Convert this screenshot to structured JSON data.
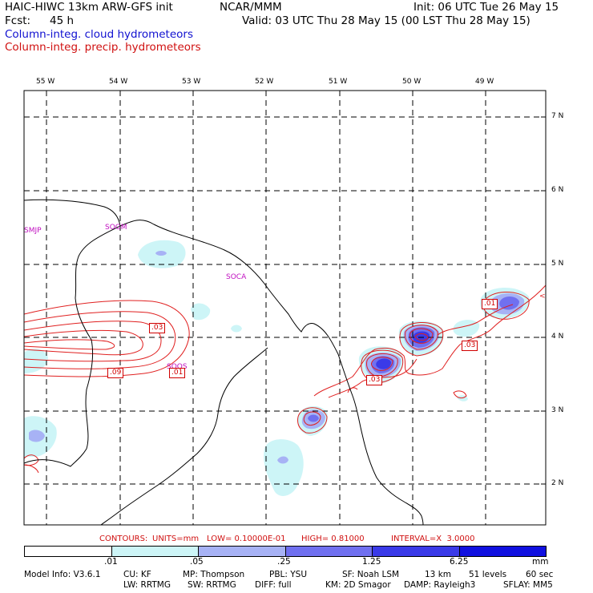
{
  "header": {
    "line1_left": "HAIC-HIWC 13km ARW-GFS init",
    "line1_mid": "NCAR/MMM",
    "line1_right": "Init: 06 UTC Tue 26 May 15",
    "line2_left_label": "Fcst:",
    "line2_left_value": "45 h",
    "line2_right": "Valid: 03 UTC Thu 28 May 15 (00 LST Thu 28 May 15)"
  },
  "legend": {
    "cloud": "Column-integ. cloud hydrometeors",
    "precip": "Column-integ. precip. hydrometeors",
    "cloud_color": "#1010d0",
    "precip_color": "#d01010"
  },
  "map": {
    "lon_labels": [
      "55 W",
      "54 W",
      "53 W",
      "52 W",
      "51 W",
      "50 W",
      "49 W"
    ],
    "lat_labels": [
      "7 N",
      "6 N",
      "5 N",
      "4 N",
      "3 N",
      "2 N"
    ],
    "stations": [
      "SMJP",
      "SOGM",
      "SOCA",
      "SOOS"
    ],
    "contour_labels": [
      ".03",
      ".09",
      ".01",
      ".03",
      ".01",
      ".03"
    ],
    "right_edge_mark": "<"
  },
  "contour_info": {
    "contours": "CONTOURS:",
    "units": "UNITS=mm",
    "low": "LOW= 0.10000E-01",
    "high": "HIGH= 0.81000",
    "interval": "INTERVAL=X  3.0000"
  },
  "colorbar": {
    "labels": [
      ".01",
      ".05",
      ".25",
      "1.25",
      "6.25"
    ],
    "unit": "mm",
    "colors": [
      "#ffffff",
      "#cdf5f7",
      "#a7b2f5",
      "#7070f0",
      "#3a3ae8",
      "#1010e0"
    ]
  },
  "footer": {
    "line1": [
      "Model Info: V3.6.1",
      "CU: KF",
      "MP: Thompson",
      "PBL: YSU",
      "SF: Noah LSM",
      "13 km",
      "51 levels",
      "60 sec"
    ],
    "line2": [
      "LW: RRTMG",
      "SW: RRTMG",
      "DIFF: full",
      "KM: 2D Smagor",
      "DAMP: Rayleigh3",
      "SFLAY: MM5"
    ]
  }
}
